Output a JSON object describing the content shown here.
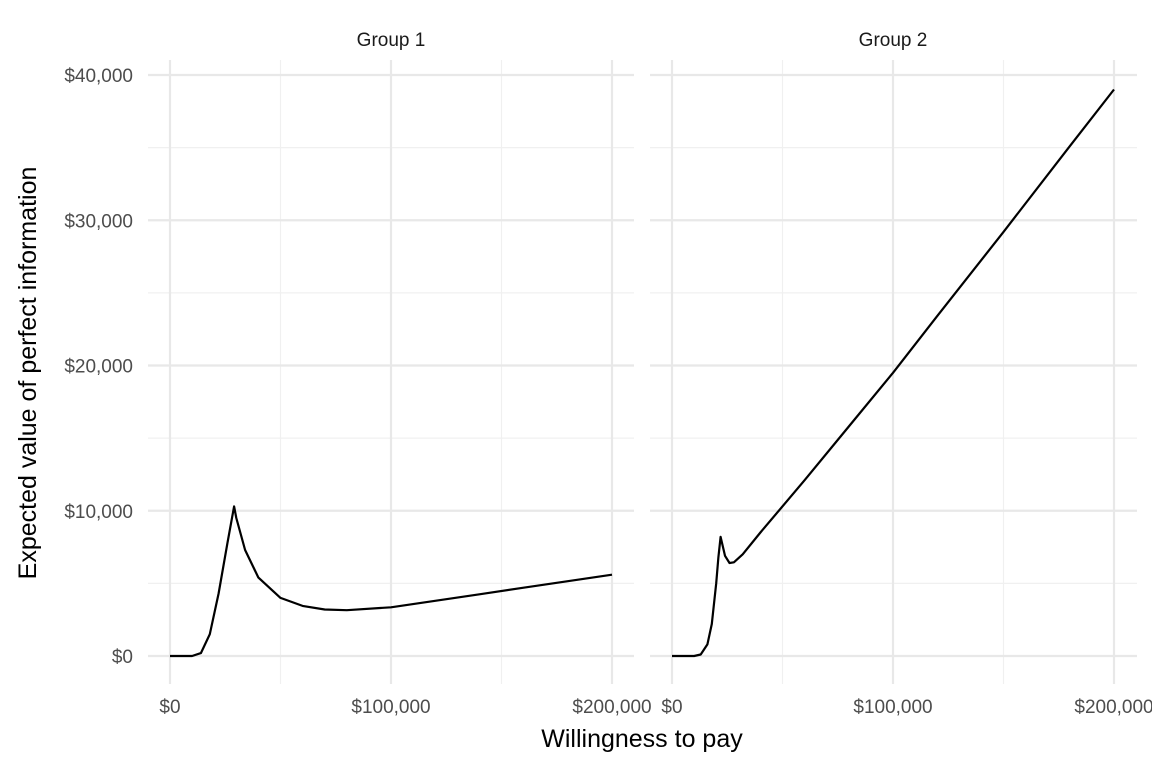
{
  "chart_data": {
    "type": "line",
    "xlabel": "Willingness to pay",
    "ylabel": "Expected value of perfect information",
    "xlim": [
      -5000,
      210000
    ],
    "ylim": [
      -2000,
      41000
    ],
    "x_ticks": [
      0,
      100000,
      200000
    ],
    "x_tick_labels": [
      "$0",
      "$100,000",
      "$200,000"
    ],
    "y_ticks": [
      0,
      10000,
      20000,
      30000,
      40000
    ],
    "y_tick_labels": [
      "$0",
      "$10,000",
      "$20,000",
      "$30,000",
      "$40,000"
    ],
    "grid": true,
    "line_color": "#000000",
    "facets": [
      {
        "label": "Group 1",
        "x": [
          0,
          10000,
          14000,
          18000,
          22000,
          26000,
          29000,
          30000,
          34000,
          40000,
          50000,
          60000,
          70000,
          80000,
          100000,
          120000,
          140000,
          160000,
          180000,
          200000
        ],
        "y": [
          0,
          0,
          200,
          1500,
          4300,
          7800,
          10300,
          9500,
          7300,
          5400,
          4000,
          3450,
          3200,
          3150,
          3350,
          3800,
          4250,
          4700,
          5150,
          5600
        ]
      },
      {
        "label": "Group 2",
        "x": [
          0,
          10000,
          13000,
          16000,
          18000,
          20000,
          21000,
          22000,
          24000,
          26000,
          28000,
          32000,
          40000,
          60000,
          80000,
          100000,
          120000,
          150000,
          180000,
          200000
        ],
        "y": [
          0,
          0,
          100,
          800,
          2200,
          5000,
          6800,
          8200,
          6900,
          6400,
          6450,
          7000,
          8500,
          12100,
          15800,
          19500,
          23400,
          29200,
          35100,
          39000
        ]
      }
    ]
  }
}
